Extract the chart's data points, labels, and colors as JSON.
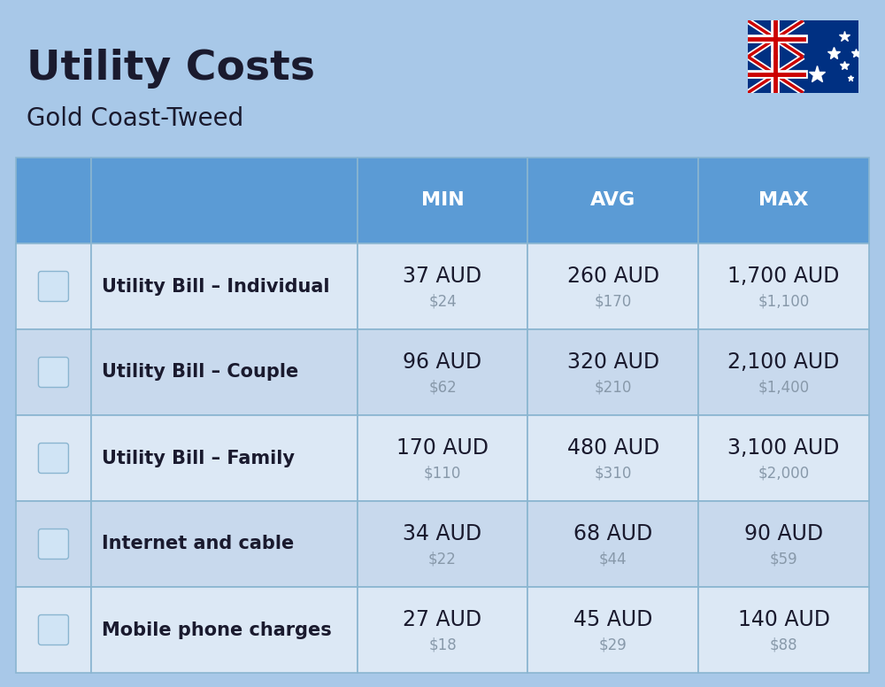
{
  "title": "Utility Costs",
  "subtitle": "Gold Coast-Tweed",
  "bg_color": "#a8c8e8",
  "header_color": "#5b9bd5",
  "header_text_color": "#ffffff",
  "row_bg_even": "#dce8f5",
  "row_bg_odd": "#c8d9ed",
  "cell_line_color": "#8ab5d0",
  "rows": [
    {
      "label": "Utility Bill – Individual",
      "min_aud": "37 AUD",
      "min_usd": "$24",
      "avg_aud": "260 AUD",
      "avg_usd": "$170",
      "max_aud": "1,700 AUD",
      "max_usd": "$1,100"
    },
    {
      "label": "Utility Bill – Couple",
      "min_aud": "96 AUD",
      "min_usd": "$62",
      "avg_aud": "320 AUD",
      "avg_usd": "$210",
      "max_aud": "2,100 AUD",
      "max_usd": "$1,400"
    },
    {
      "label": "Utility Bill – Family",
      "min_aud": "170 AUD",
      "min_usd": "$110",
      "avg_aud": "480 AUD",
      "avg_usd": "$310",
      "max_aud": "3,100 AUD",
      "max_usd": "$2,000"
    },
    {
      "label": "Internet and cable",
      "min_aud": "34 AUD",
      "min_usd": "$22",
      "avg_aud": "68 AUD",
      "avg_usd": "$44",
      "max_aud": "90 AUD",
      "max_usd": "$59"
    },
    {
      "label": "Mobile phone charges",
      "min_aud": "27 AUD",
      "min_usd": "$18",
      "avg_aud": "45 AUD",
      "avg_usd": "$29",
      "max_aud": "140 AUD",
      "max_usd": "$88"
    }
  ],
  "title_fontsize": 34,
  "subtitle_fontsize": 20,
  "header_fontsize": 16,
  "label_fontsize": 15,
  "value_fontsize": 17,
  "usd_fontsize": 12,
  "usd_color": "#8899aa",
  "text_color": "#1a1a2e"
}
